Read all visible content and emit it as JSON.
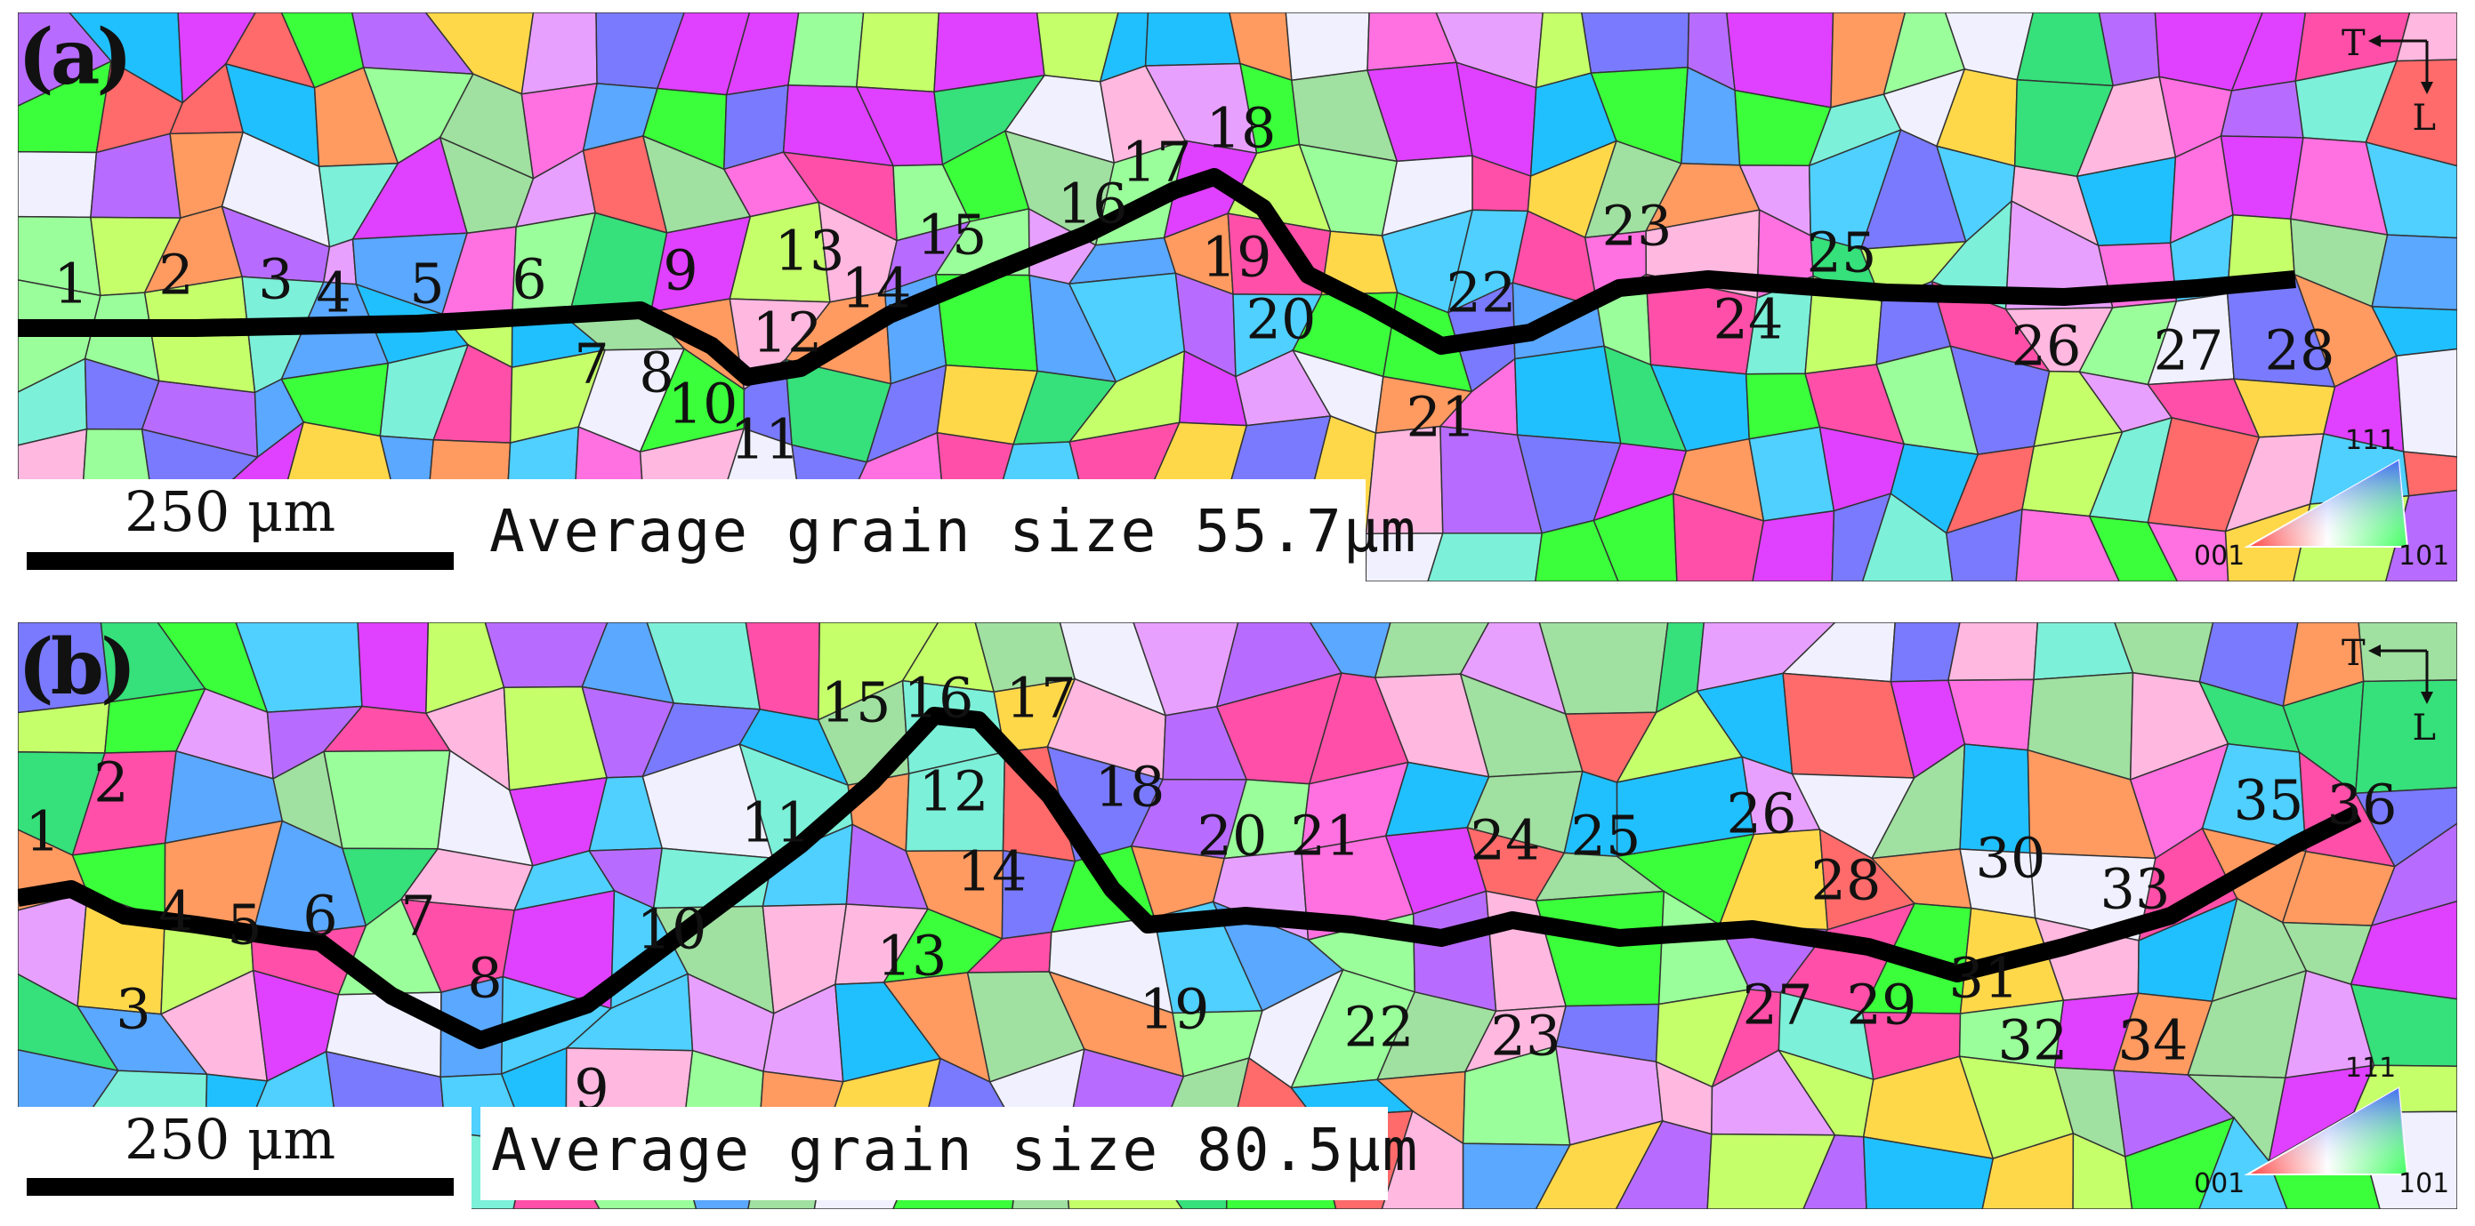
{
  "panel_a": {
    "label": "(a)",
    "scale_text": "250 μm",
    "avg_text": "Average grain size 55.7μm",
    "axis_t": "T",
    "axis_l": "L",
    "ipf": {
      "top": "111",
      "left": "001",
      "right": "101"
    },
    "grain_labels": [
      "1",
      "2",
      "3",
      "4",
      "5",
      "6",
      "7",
      "8",
      "9",
      "10",
      "11",
      "12",
      "13",
      "14",
      "15",
      "16",
      "17",
      "18",
      "19",
      "20",
      "21",
      "22",
      "23",
      "24",
      "25",
      "26",
      "27",
      "28"
    ]
  },
  "panel_b": {
    "label": "(b)",
    "scale_text": "250 μm",
    "avg_text": "Average grain size 80.5μm",
    "axis_t": "T",
    "axis_l": "L",
    "ipf": {
      "top": "111",
      "left": "001",
      "right": "101"
    },
    "grain_labels": [
      "1",
      "2",
      "3",
      "4",
      "5",
      "6",
      "7",
      "8",
      "9",
      "10",
      "11",
      "12",
      "13",
      "14",
      "15",
      "16",
      "17",
      "18",
      "19",
      "20",
      "21",
      "22",
      "23",
      "24",
      "25",
      "26",
      "27",
      "28",
      "29",
      "30",
      "31",
      "32",
      "33",
      "34",
      "35",
      "36"
    ]
  },
  "colors": [
    "#ff4fa8",
    "#36e07a",
    "#5aa8ff",
    "#c5ff6a",
    "#ff9a60",
    "#b86cff",
    "#7cf0d8",
    "#ff70e0",
    "#ffd84a",
    "#4fd0ff",
    "#e8a0ff",
    "#9aff9a",
    "#ff6a6a",
    "#f0f0ff",
    "#3aff3a",
    "#ffb8e0",
    "#7a7aff",
    "#20c0ff",
    "#e040ff",
    "#a0e0a0"
  ]
}
